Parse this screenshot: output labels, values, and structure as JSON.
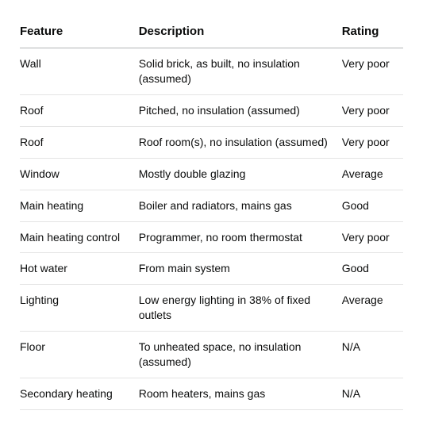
{
  "table": {
    "columns": [
      "Feature",
      "Description",
      "Rating"
    ],
    "column_widths_pct": [
      31,
      53,
      16
    ],
    "header_fontsize_pt": 15,
    "header_fontweight": 700,
    "body_fontsize_pt": 14,
    "font_family": "-apple-system, Segoe UI, Helvetica, Arial, sans-serif",
    "text_color": "#0b0c0c",
    "background_color": "#ffffff",
    "header_border_color": "#b1b4b6",
    "row_border_color": "#e4e4e4",
    "rows": [
      {
        "feature": "Wall",
        "description": "Solid brick, as built, no insulation (assumed)",
        "rating": "Very poor"
      },
      {
        "feature": "Roof",
        "description": "Pitched, no insulation (assumed)",
        "rating": "Very poor"
      },
      {
        "feature": "Roof",
        "description": "Roof room(s), no insulation (assumed)",
        "rating": "Very poor"
      },
      {
        "feature": "Window",
        "description": "Mostly double glazing",
        "rating": "Average"
      },
      {
        "feature": "Main heating",
        "description": "Boiler and radiators, mains gas",
        "rating": "Good"
      },
      {
        "feature": "Main heating control",
        "description": "Programmer, no room thermostat",
        "rating": "Very poor"
      },
      {
        "feature": "Hot water",
        "description": "From main system",
        "rating": "Good"
      },
      {
        "feature": "Lighting",
        "description": "Low energy lighting in 38% of fixed outlets",
        "rating": "Average"
      },
      {
        "feature": "Floor",
        "description": "To unheated space, no insulation (assumed)",
        "rating": "N/A"
      },
      {
        "feature": "Secondary heating",
        "description": "Room heaters, mains gas",
        "rating": "N/A"
      }
    ]
  }
}
